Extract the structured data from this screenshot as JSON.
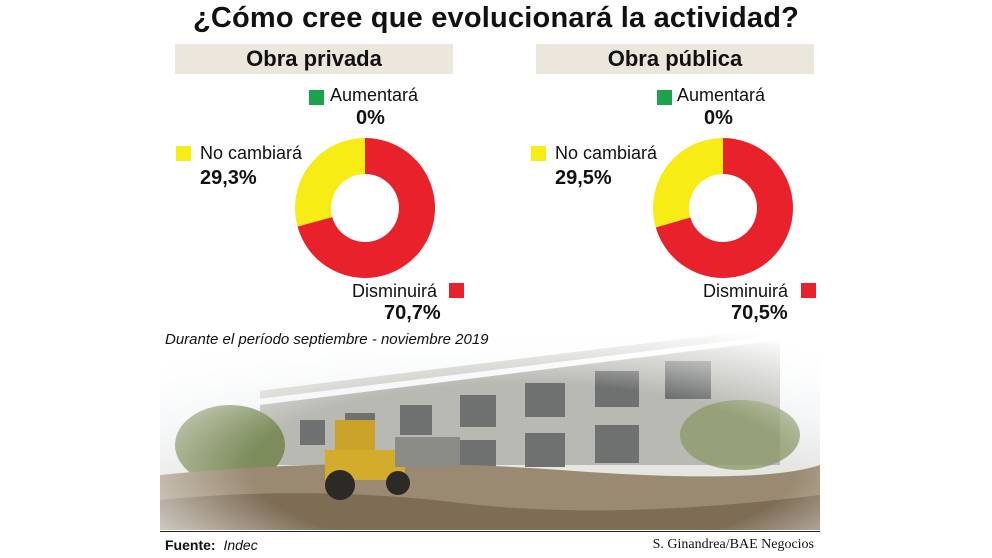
{
  "title": "¿Cómo cree que evolucionará la actividad?",
  "subtitle": "Durante el período septiembre - noviembre 2019",
  "source_label": "Fuente:",
  "source_value": "Indec",
  "credit": "S. Ginandrea/BAE Negocios",
  "colors": {
    "aumentara": "#1aa34a",
    "no_cambiara": "#f7ec13",
    "disminuira": "#e8212b"
  },
  "chart_data": [
    {
      "type": "pie",
      "title": "Obra privada",
      "categories": [
        "Aumentará",
        "No cambiará",
        "Disminuirá"
      ],
      "values": [
        0,
        29.3,
        70.7
      ],
      "value_labels": [
        "0%",
        "29,3%",
        "70,7%"
      ]
    },
    {
      "type": "pie",
      "title": "Obra pública",
      "categories": [
        "Aumentará",
        "No cambiará",
        "Disminuirá"
      ],
      "values": [
        0,
        29.5,
        70.5
      ],
      "value_labels": [
        "0%",
        "29,5%",
        "70,5%"
      ]
    }
  ]
}
